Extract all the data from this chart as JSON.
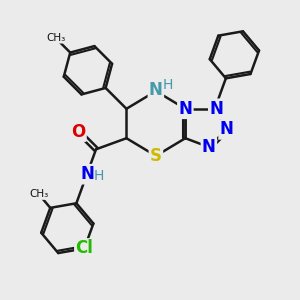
{
  "background_color": "#ebebeb",
  "bond_color": "#1a1a1a",
  "bond_width": 1.8,
  "atoms": {
    "S": {
      "color": "#ccbb00",
      "fontsize": 12,
      "fontweight": "bold"
    },
    "N": {
      "color": "#0000ee",
      "fontsize": 12,
      "fontweight": "bold"
    },
    "NH": {
      "color": "#4499aa",
      "fontsize": 12,
      "fontweight": "bold"
    },
    "O": {
      "color": "#dd0000",
      "fontsize": 12,
      "fontweight": "bold"
    },
    "Cl": {
      "color": "#22bb00",
      "fontsize": 12,
      "fontweight": "bold"
    },
    "H": {
      "color": "#4499aa",
      "fontsize": 10,
      "fontweight": "normal"
    }
  },
  "figsize": [
    3.0,
    3.0
  ],
  "dpi": 100
}
